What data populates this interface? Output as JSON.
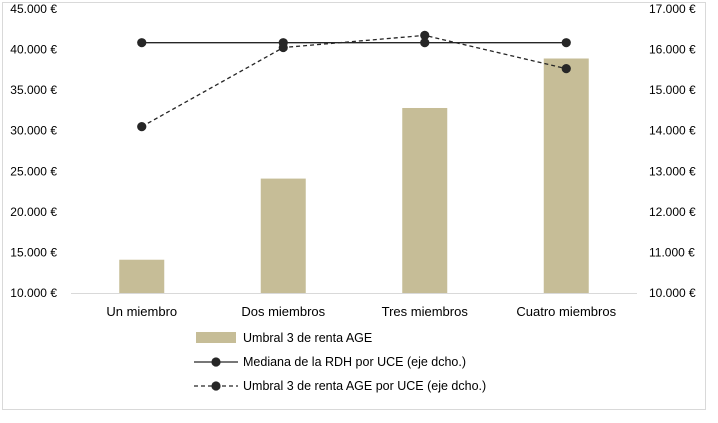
{
  "chart_data": {
    "type": "bar",
    "categories": [
      "Un miembro",
      "Dos miembros",
      "Tres miembros",
      "Cuatro miembros"
    ],
    "left_axis": {
      "min": 10000,
      "max": 45000,
      "step": 5000,
      "tick_labels": [
        "10.000 €",
        "15.000 €",
        "20.000 €",
        "25.000 €",
        "30.000 €",
        "35.000 €",
        "40.000 €",
        "45.000 €"
      ]
    },
    "right_axis": {
      "min": 10000,
      "max": 17000,
      "step": 1000,
      "tick_labels": [
        "10.000 €",
        "11.000 €",
        "12.000 €",
        "13.000 €",
        "14.000 €",
        "15.000 €",
        "16.000 €",
        "17.000 €"
      ]
    },
    "series": [
      {
        "name": "Umbral 3 de renta AGE",
        "type": "bar",
        "axis": "left",
        "values": [
          14100,
          24100,
          32800,
          38900
        ],
        "color": "#c6bd97"
      },
      {
        "name": "Mediana de la RDH por UCE (eje dcho.)",
        "type": "line",
        "axis": "right",
        "values": [
          16170,
          16170,
          16170,
          16170
        ],
        "color": "#262626",
        "dash": "solid"
      },
      {
        "name": "Umbral 3 de renta AGE por UCE (eje dcho.)",
        "type": "line",
        "axis": "right",
        "values": [
          14100,
          16050,
          16350,
          15530
        ],
        "color": "#262626",
        "dash": "dashed"
      }
    ],
    "legend_position": "bottom",
    "grid": false
  }
}
